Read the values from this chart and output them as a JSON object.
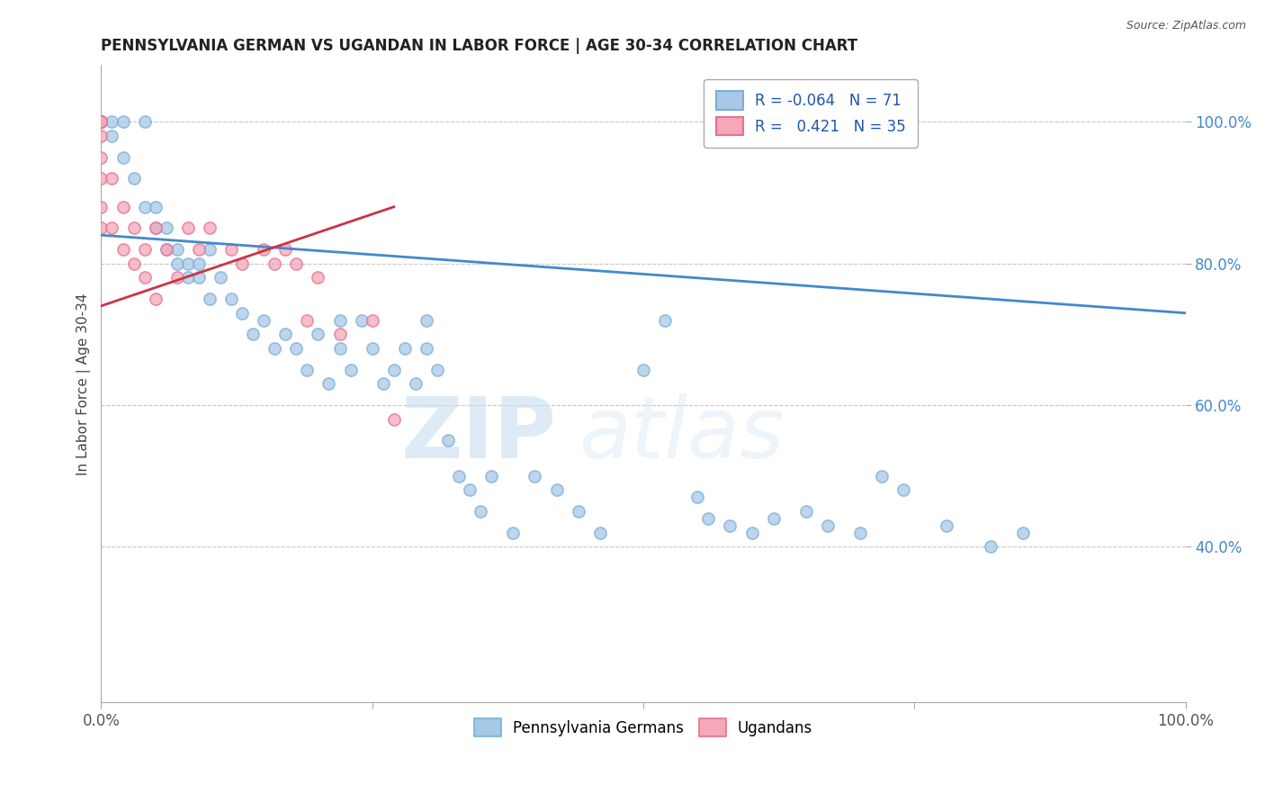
{
  "title": "PENNSYLVANIA GERMAN VS UGANDAN IN LABOR FORCE | AGE 30-34 CORRELATION CHART",
  "source_text": "Source: ZipAtlas.com",
  "ylabel": "In Labor Force | Age 30-34",
  "xlim": [
    0.0,
    1.0
  ],
  "ylim": [
    0.18,
    1.08
  ],
  "ytick_positions": [
    0.4,
    0.6,
    0.8,
    1.0
  ],
  "ytick_labels": [
    "40.0%",
    "60.0%",
    "80.0%",
    "100.0%"
  ],
  "legend_labels": [
    "Pennsylvania Germans",
    "Ugandans"
  ],
  "legend_R": [
    "-0.064",
    "0.421"
  ],
  "legend_N": [
    "71",
    "35"
  ],
  "blue_color": "#a8c8e8",
  "blue_edge_color": "#7bafd4",
  "pink_color": "#f4a8b8",
  "pink_edge_color": "#e87090",
  "blue_line_color": "#4488cc",
  "pink_line_color": "#cc3344",
  "watermark_zip": "ZIP",
  "watermark_atlas": "atlas",
  "blue_scatter_x": [
    0.0,
    0.0,
    0.0,
    0.0,
    0.01,
    0.01,
    0.02,
    0.02,
    0.03,
    0.04,
    0.04,
    0.05,
    0.05,
    0.06,
    0.06,
    0.07,
    0.07,
    0.08,
    0.08,
    0.09,
    0.09,
    0.1,
    0.1,
    0.11,
    0.12,
    0.13,
    0.14,
    0.15,
    0.16,
    0.17,
    0.18,
    0.19,
    0.2,
    0.21,
    0.22,
    0.22,
    0.23,
    0.24,
    0.25,
    0.26,
    0.27,
    0.28,
    0.29,
    0.3,
    0.3,
    0.31,
    0.32,
    0.33,
    0.34,
    0.35,
    0.36,
    0.38,
    0.4,
    0.42,
    0.44,
    0.46,
    0.5,
    0.52,
    0.55,
    0.56,
    0.58,
    0.6,
    0.62,
    0.65,
    0.67,
    0.7,
    0.72,
    0.74,
    0.78,
    0.82,
    0.85
  ],
  "blue_scatter_y": [
    1.0,
    1.0,
    1.0,
    1.0,
    1.0,
    0.98,
    0.95,
    1.0,
    0.92,
    0.88,
    1.0,
    0.88,
    0.85,
    0.82,
    0.85,
    0.8,
    0.82,
    0.78,
    0.8,
    0.78,
    0.8,
    0.75,
    0.82,
    0.78,
    0.75,
    0.73,
    0.7,
    0.72,
    0.68,
    0.7,
    0.68,
    0.65,
    0.7,
    0.63,
    0.72,
    0.68,
    0.65,
    0.72,
    0.68,
    0.63,
    0.65,
    0.68,
    0.63,
    0.72,
    0.68,
    0.65,
    0.55,
    0.5,
    0.48,
    0.45,
    0.5,
    0.42,
    0.5,
    0.48,
    0.45,
    0.42,
    0.65,
    0.72,
    0.47,
    0.44,
    0.43,
    0.42,
    0.44,
    0.45,
    0.43,
    0.42,
    0.5,
    0.48,
    0.43,
    0.4,
    0.42
  ],
  "pink_scatter_x": [
    0.0,
    0.0,
    0.0,
    0.0,
    0.0,
    0.0,
    0.0,
    0.0,
    0.0,
    0.01,
    0.01,
    0.02,
    0.02,
    0.03,
    0.03,
    0.04,
    0.04,
    0.05,
    0.05,
    0.06,
    0.07,
    0.08,
    0.09,
    0.1,
    0.12,
    0.13,
    0.15,
    0.16,
    0.17,
    0.18,
    0.19,
    0.2,
    0.22,
    0.25,
    0.27
  ],
  "pink_scatter_y": [
    1.0,
    1.0,
    1.0,
    1.0,
    0.98,
    0.95,
    0.92,
    0.88,
    0.85,
    0.92,
    0.85,
    0.88,
    0.82,
    0.85,
    0.8,
    0.82,
    0.78,
    0.85,
    0.75,
    0.82,
    0.78,
    0.85,
    0.82,
    0.85,
    0.82,
    0.8,
    0.82,
    0.8,
    0.82,
    0.8,
    0.72,
    0.78,
    0.7,
    0.72,
    0.58
  ],
  "blue_line_x": [
    0.0,
    1.0
  ],
  "blue_line_y": [
    0.84,
    0.73
  ],
  "pink_line_x": [
    0.0,
    0.27
  ],
  "pink_line_y": [
    0.74,
    0.88
  ]
}
